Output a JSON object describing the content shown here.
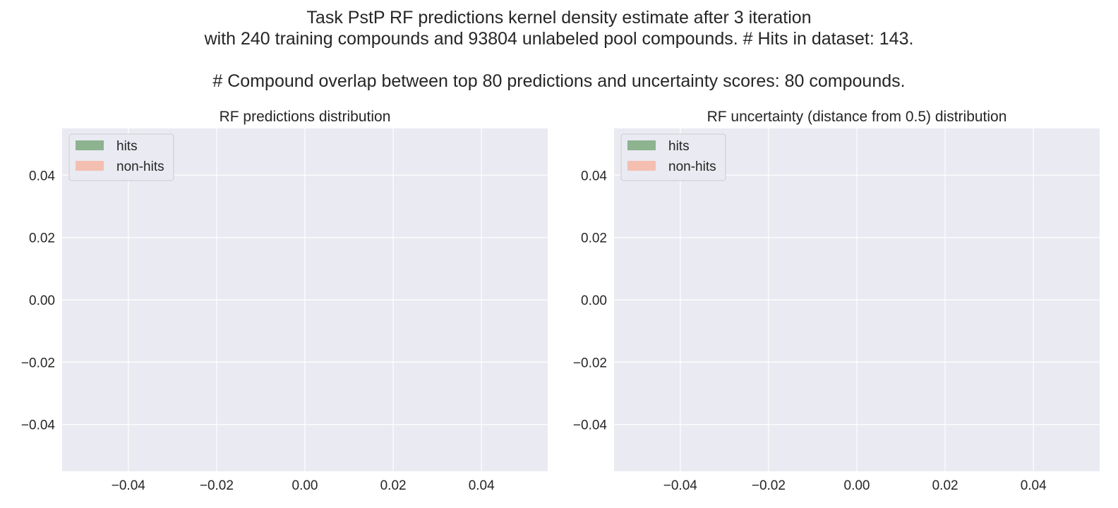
{
  "figure": {
    "title_lines": [
      "Task PstP RF predictions kernel density estimate after 3 iteration",
      "with 240 training compounds and 93804 unlabeled pool compounds. # Hits in dataset: 143.",
      "# Compound overlap between top 80 predictions and uncertainty scores: 80 compounds."
    ]
  },
  "colors": {
    "axes_background": "#eaeaf2",
    "grid": "#ffffff",
    "hits": "#8db38f",
    "non_hits": "#f4bfb1",
    "legend_background": "#eaeaf2",
    "legend_border": "#cccccc"
  },
  "chart_data": [
    {
      "type": "area",
      "title": "RF predictions distribution",
      "xlabel": "",
      "ylabel": "",
      "xlim": [
        -0.055,
        0.055
      ],
      "ylim": [
        -0.055,
        0.055
      ],
      "xticks": [
        -0.04,
        -0.02,
        0.0,
        0.02,
        0.04
      ],
      "yticks": [
        -0.04,
        -0.02,
        0.0,
        0.02,
        0.04
      ],
      "xtick_labels": [
        "−0.04",
        "−0.02",
        "0.00",
        "0.02",
        "0.04"
      ],
      "ytick_labels": [
        "−0.04",
        "−0.02",
        "0.00",
        "0.02",
        "0.04"
      ],
      "grid": true,
      "legend_position": "upper-left",
      "series": [
        {
          "name": "hits",
          "values": []
        },
        {
          "name": "non-hits",
          "values": []
        }
      ]
    },
    {
      "type": "area",
      "title": "RF uncertainty (distance from 0.5) distribution",
      "xlabel": "",
      "ylabel": "",
      "xlim": [
        -0.055,
        0.055
      ],
      "ylim": [
        -0.055,
        0.055
      ],
      "xticks": [
        -0.04,
        -0.02,
        0.0,
        0.02,
        0.04
      ],
      "yticks": [
        -0.04,
        -0.02,
        0.0,
        0.02,
        0.04
      ],
      "xtick_labels": [
        "−0.04",
        "−0.02",
        "0.00",
        "0.02",
        "0.04"
      ],
      "ytick_labels": [
        "−0.04",
        "−0.02",
        "0.00",
        "0.02",
        "0.04"
      ],
      "grid": true,
      "legend_position": "upper-left",
      "series": [
        {
          "name": "hits",
          "values": []
        },
        {
          "name": "non-hits",
          "values": []
        }
      ]
    }
  ]
}
